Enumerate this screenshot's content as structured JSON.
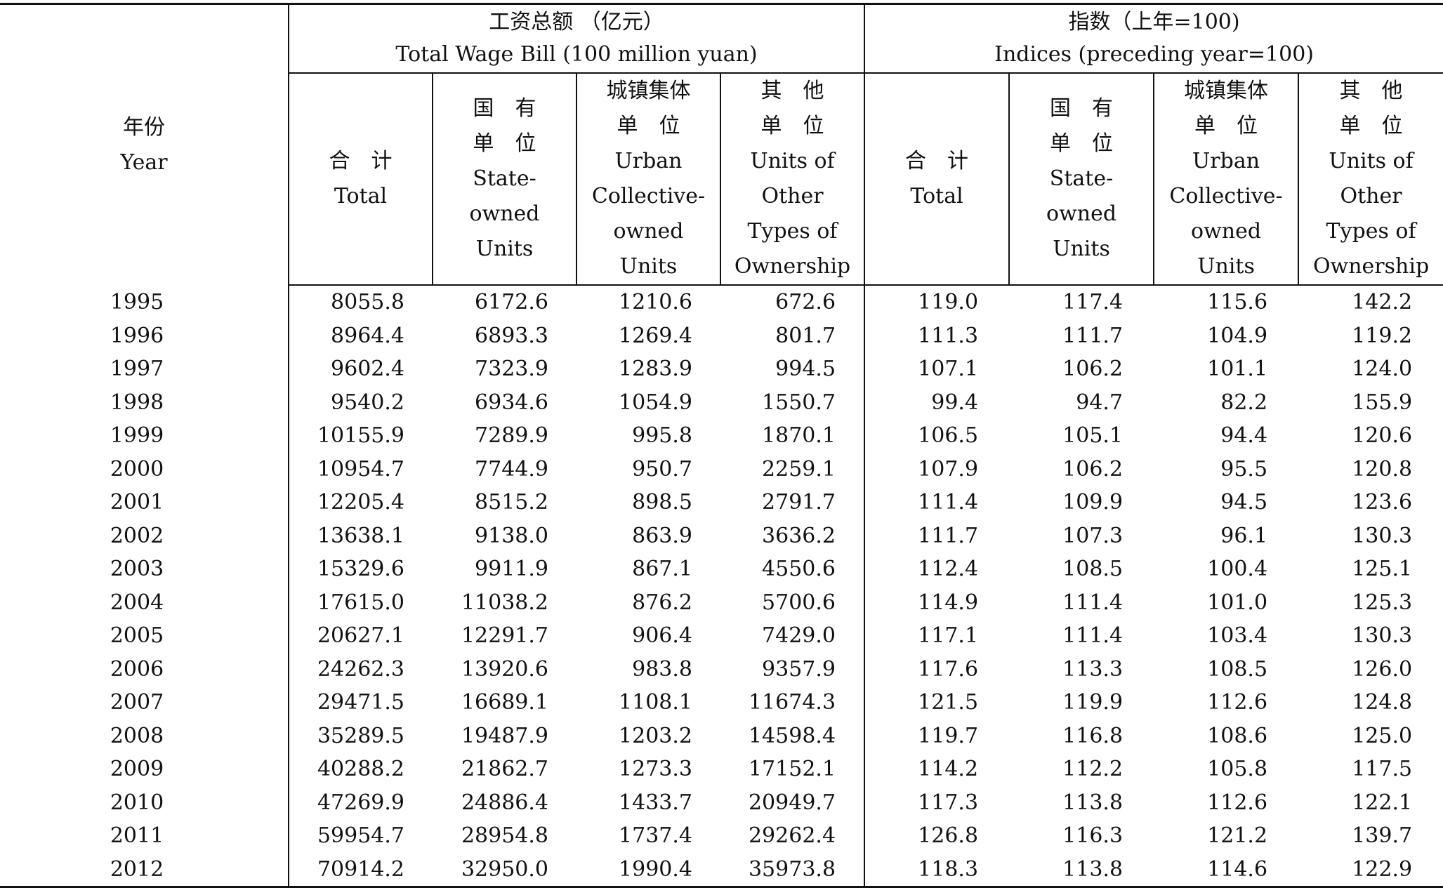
{
  "header": {
    "year_zh": "年份",
    "year_en": "Year",
    "wage_bill_zh": "工资总额 （亿元）",
    "wage_bill_en": "Total Wage Bill  (100 million yuan)",
    "indices_zh": "指数（上年=100)",
    "indices_en": "Indices (preceding year=100)",
    "col_total_zh": "合　计",
    "col_total_en": "Total",
    "col_state_zh1": "国　有",
    "col_state_zh2": "单　位",
    "col_state_en1": "State-",
    "col_state_en2": "owned",
    "col_state_en3": "Units",
    "col_collective_zh1": "城镇集体",
    "col_collective_zh2": "单　位",
    "col_collective_en1": "Urban",
    "col_collective_en2": "Collective-",
    "col_collective_en3": "owned",
    "col_collective_en4": "Units",
    "col_other_zh1": "其　他",
    "col_other_zh2": "单　位",
    "col_other_en1": "Units of",
    "col_other_en2": "Other",
    "col_other_en3": "Types of",
    "col_other_en4": "Ownership"
  },
  "rows": [
    [
      "1995",
      "8055.8",
      "6172.6",
      "1210.6",
      "672.6",
      "119.0",
      "117.4",
      "115.6",
      "142.2"
    ],
    [
      "1996",
      "8964.4",
      "6893.3",
      "1269.4",
      "801.7",
      "111.3",
      "111.7",
      "104.9",
      "119.2"
    ],
    [
      "1997",
      "9602.4",
      "7323.9",
      "1283.9",
      "994.5",
      "107.1",
      "106.2",
      "101.1",
      "124.0"
    ],
    [
      "1998",
      "9540.2",
      "6934.6",
      "1054.9",
      "1550.7",
      "99.4",
      "94.7",
      "82.2",
      "155.9"
    ],
    [
      "1999",
      "10155.9",
      "7289.9",
      "995.8",
      "1870.1",
      "106.5",
      "105.1",
      "94.4",
      "120.6"
    ],
    [
      "2000",
      "10954.7",
      "7744.9",
      "950.7",
      "2259.1",
      "107.9",
      "106.2",
      "95.5",
      "120.8"
    ],
    [
      "2001",
      "12205.4",
      "8515.2",
      "898.5",
      "2791.7",
      "111.4",
      "109.9",
      "94.5",
      "123.6"
    ],
    [
      "2002",
      "13638.1",
      "9138.0",
      "863.9",
      "3636.2",
      "111.7",
      "107.3",
      "96.1",
      "130.3"
    ],
    [
      "2003",
      "15329.6",
      "9911.9",
      "867.1",
      "4550.6",
      "112.4",
      "108.5",
      "100.4",
      "125.1"
    ],
    [
      "2004",
      "17615.0",
      "11038.2",
      "876.2",
      "5700.6",
      "114.9",
      "111.4",
      "101.0",
      "125.3"
    ],
    [
      "2005",
      "20627.1",
      "12291.7",
      "906.4",
      "7429.0",
      "117.1",
      "111.4",
      "103.4",
      "130.3"
    ],
    [
      "2006",
      "24262.3",
      "13920.6",
      "983.8",
      "9357.9",
      "117.6",
      "113.3",
      "108.5",
      "126.0"
    ],
    [
      "2007",
      "29471.5",
      "16689.1",
      "1108.1",
      "11674.3",
      "121.5",
      "119.9",
      "112.6",
      "124.8"
    ],
    [
      "2008",
      "35289.5",
      "19487.9",
      "1203.2",
      "14598.4",
      "119.7",
      "116.8",
      "108.6",
      "125.0"
    ],
    [
      "2009",
      "40288.2",
      "21862.7",
      "1273.3",
      "17152.1",
      "114.2",
      "112.2",
      "105.8",
      "117.5"
    ],
    [
      "2010",
      "47269.9",
      "24886.4",
      "1433.7",
      "20949.7",
      "117.3",
      "113.8",
      "112.6",
      "122.1"
    ],
    [
      "2011",
      "59954.7",
      "28954.8",
      "1737.4",
      "29262.4",
      "126.8",
      "116.3",
      "121.2",
      "139.7"
    ],
    [
      "2012",
      "70914.2",
      "32950.0",
      "1990.4",
      "35973.8",
      "118.3",
      "113.8",
      "114.6",
      "122.9"
    ]
  ]
}
